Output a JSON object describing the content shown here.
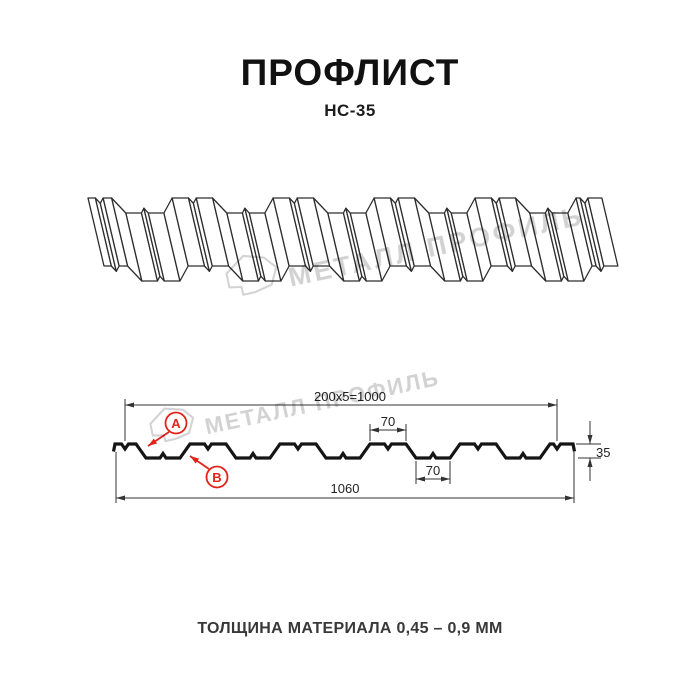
{
  "header": {
    "title": "ПРОФЛИСТ",
    "subtitle": "НС-35"
  },
  "watermark": {
    "brand": "МЕТАЛЛ ПРОФИЛЬ"
  },
  "cross_section": {
    "dim_working_width": "200x5=1000",
    "dim_flange_width": "70",
    "dim_valley_width": "70",
    "dim_overall_width": "1060",
    "dim_height": "35",
    "callout_a": "A",
    "callout_b": "B"
  },
  "footer": {
    "note": "ТОЛЩИНА МАТЕРИАЛА 0,45 – 0,9 ММ"
  },
  "colors": {
    "accent": "#e2231a",
    "line": "#2d2d2d",
    "watermark": "#d2d2d2"
  }
}
